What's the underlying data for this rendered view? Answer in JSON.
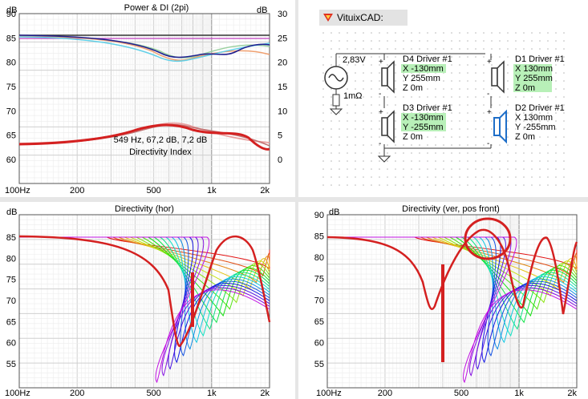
{
  "top_left": {
    "title": "Power & DI (2pi)",
    "y_left_unit": "dB",
    "y_right_unit": "dB",
    "y_left_ticks": [
      "90",
      "85",
      "80",
      "75",
      "70",
      "65",
      "60"
    ],
    "y_right_ticks": [
      "30",
      "25",
      "20",
      "15",
      "10",
      "5",
      "0"
    ],
    "x_ticks": [
      "100Hz",
      "200",
      "500",
      "1k",
      "2k"
    ],
    "annotation_line1": "549 Hz, 67,2 dB, 7,2 dB",
    "annotation_line2": "Directivity Index"
  },
  "schematic": {
    "app_title": "VituixCAD:",
    "source_voltage": "2,83V",
    "source_resistance": "1mΩ",
    "drivers": [
      {
        "name": "D4 Driver #1",
        "x": "X -130mm",
        "y": "Y 255mm",
        "z": "Z 0m"
      },
      {
        "name": "D1 Driver #1",
        "x": "X 130mm",
        "y": "Y 255mm",
        "z": "Z 0m"
      },
      {
        "name": "D3 Driver #1",
        "x": "X -130mm",
        "y": "Y -255mm",
        "z": "Z 0m"
      },
      {
        "name": "D2 Driver #1",
        "x": "X 130mm",
        "y": "Y -255mm",
        "z": "Z 0m"
      }
    ],
    "colors": {
      "highlight": "#b8f0b8",
      "selected_driver": "#1e6ec8"
    }
  },
  "bottom_left": {
    "title": "Directivity (hor)",
    "y_unit": "dB",
    "y_ticks": [
      "85",
      "80",
      "75",
      "70",
      "65",
      "60",
      "55"
    ],
    "x_ticks": [
      "100Hz",
      "200",
      "500",
      "1k",
      "2k"
    ]
  },
  "bottom_right": {
    "title": "Directivity (ver, pos front)",
    "y_unit": "dB",
    "y_ticks": [
      "90",
      "85",
      "80",
      "75",
      "70",
      "65",
      "60",
      "55"
    ],
    "x_ticks": [
      "100Hz",
      "200",
      "500",
      "1k",
      "2k"
    ]
  }
}
